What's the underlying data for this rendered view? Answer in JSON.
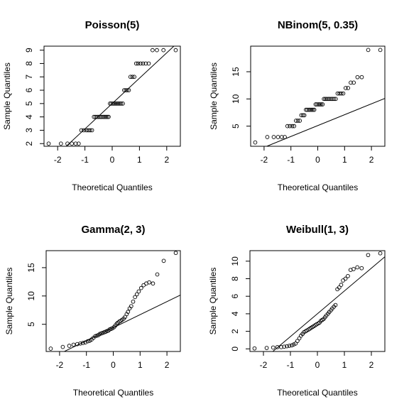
{
  "chart_data": [
    {
      "type": "scatter",
      "title": "Poisson(5)",
      "xlabel": "Theoretical Quantiles",
      "ylabel": "Sample Quantiles",
      "xlim": [
        -2.5,
        2.5
      ],
      "ylim": [
        1.8,
        9.3
      ],
      "xticks": [
        -2,
        -1,
        0,
        1,
        2
      ],
      "yticks": [
        2,
        3,
        4,
        5,
        6,
        7,
        8,
        9
      ],
      "ytick_labels": [
        "2",
        "3",
        "4",
        "5",
        "6",
        "7",
        "8",
        "9"
      ],
      "points": {
        "x": [
          -2.33,
          -1.88,
          -1.64,
          -1.48,
          -1.34,
          -1.23,
          -1.13,
          -1.04,
          -0.95,
          -0.88,
          -0.81,
          -0.74,
          -0.67,
          -0.61,
          -0.55,
          -0.5,
          -0.44,
          -0.39,
          -0.33,
          -0.28,
          -0.23,
          -0.18,
          -0.13,
          -0.08,
          -0.03,
          0.03,
          0.08,
          0.13,
          0.18,
          0.23,
          0.28,
          0.33,
          0.39,
          0.44,
          0.5,
          0.55,
          0.61,
          0.67,
          0.74,
          0.81,
          0.88,
          0.95,
          1.04,
          1.13,
          1.23,
          1.34,
          1.48,
          1.64,
          1.88,
          2.33
        ],
        "y": [
          2,
          2,
          2,
          2,
          2,
          2,
          3,
          3,
          3,
          3,
          3,
          3,
          4,
          4,
          4,
          4,
          4,
          4,
          4,
          4,
          4,
          4,
          4,
          5,
          5,
          5,
          5,
          5,
          5,
          5,
          5,
          5,
          5,
          6,
          6,
          6,
          6,
          7,
          7,
          7,
          8,
          8,
          8,
          8,
          8,
          8,
          9,
          9,
          9,
          9
        ]
      },
      "ref_line": {
        "intercept": 5.0,
        "slope": 1.9
      }
    },
    {
      "type": "scatter",
      "title": "NBinom(5, 0.35)",
      "xlabel": "Theoretical Quantiles",
      "ylabel": "Sample Quantiles",
      "xlim": [
        -2.5,
        2.5
      ],
      "ylim": [
        1.3,
        19.7
      ],
      "xticks": [
        -2,
        -1,
        0,
        1,
        2
      ],
      "yticks": [
        5,
        10,
        15
      ],
      "ytick_labels": [
        "5",
        "10",
        "15"
      ],
      "points": {
        "x": [
          -2.33,
          -1.88,
          -1.64,
          -1.48,
          -1.34,
          -1.23,
          -1.13,
          -1.04,
          -0.95,
          -0.88,
          -0.81,
          -0.74,
          -0.67,
          -0.61,
          -0.55,
          -0.5,
          -0.44,
          -0.39,
          -0.33,
          -0.28,
          -0.23,
          -0.18,
          -0.13,
          -0.08,
          -0.03,
          0.03,
          0.08,
          0.13,
          0.18,
          0.23,
          0.28,
          0.33,
          0.39,
          0.44,
          0.5,
          0.55,
          0.61,
          0.67,
          0.74,
          0.81,
          0.88,
          0.95,
          1.04,
          1.13,
          1.23,
          1.34,
          1.48,
          1.64,
          1.88,
          2.33
        ],
        "y": [
          2,
          3,
          3,
          3,
          3,
          3,
          5,
          5,
          5,
          5,
          6,
          6,
          6,
          7,
          7,
          7,
          8,
          8,
          8,
          8,
          8,
          8,
          8,
          9,
          9,
          9,
          9,
          9,
          9,
          10,
          10,
          10,
          10,
          10,
          10,
          10,
          10,
          10,
          11,
          11,
          11,
          11,
          12,
          12,
          13,
          13,
          14,
          14,
          19,
          19
        ]
      },
      "ref_line": {
        "intercept": 5.1,
        "slope": 2.0
      }
    },
    {
      "type": "scatter",
      "title": "Gamma(2, 3)",
      "xlabel": "Theoretical Quantiles",
      "ylabel": "Sample Quantiles",
      "xlim": [
        -2.5,
        2.5
      ],
      "ylim": [
        0.2,
        18.0
      ],
      "xticks": [
        -2,
        -1,
        0,
        1,
        2
      ],
      "yticks": [
        5,
        10,
        15
      ],
      "ytick_labels": [
        "5",
        "10",
        "15"
      ],
      "points": {
        "x": [
          -2.33,
          -1.88,
          -1.64,
          -1.48,
          -1.34,
          -1.23,
          -1.13,
          -1.04,
          -0.95,
          -0.88,
          -0.81,
          -0.74,
          -0.67,
          -0.61,
          -0.55,
          -0.5,
          -0.44,
          -0.39,
          -0.33,
          -0.28,
          -0.23,
          -0.18,
          -0.13,
          -0.08,
          -0.03,
          0.03,
          0.08,
          0.13,
          0.18,
          0.23,
          0.28,
          0.33,
          0.39,
          0.44,
          0.5,
          0.55,
          0.61,
          0.67,
          0.74,
          0.81,
          0.88,
          0.95,
          1.04,
          1.13,
          1.23,
          1.34,
          1.48,
          1.64,
          1.88,
          2.33
        ],
        "y": [
          0.7,
          1.0,
          1.2,
          1.4,
          1.5,
          1.6,
          1.7,
          1.8,
          2.0,
          2.1,
          2.3,
          2.6,
          2.9,
          3.0,
          3.1,
          3.3,
          3.4,
          3.5,
          3.6,
          3.7,
          3.8,
          3.9,
          4.1,
          4.2,
          4.3,
          4.5,
          4.8,
          5.1,
          5.3,
          5.5,
          5.6,
          5.8,
          6.0,
          6.3,
          6.8,
          7.2,
          7.8,
          8.2,
          9.0,
          9.8,
          10.3,
          10.8,
          11.4,
          11.9,
          12.2,
          12.4,
          12.2,
          13.8,
          16.2,
          17.6
        ]
      },
      "ref_line": {
        "intercept": 4.4,
        "slope": 2.3
      }
    },
    {
      "type": "scatter",
      "title": "Weibull(1, 3)",
      "xlabel": "Theoretical Quantiles",
      "ylabel": "Sample Quantiles",
      "xlim": [
        -2.5,
        2.5
      ],
      "ylim": [
        -0.3,
        11.2
      ],
      "xticks": [
        -2,
        -1,
        0,
        1,
        2
      ],
      "yticks": [
        0,
        2,
        4,
        6,
        8,
        10
      ],
      "ytick_labels": [
        "0",
        "2",
        "4",
        "6",
        "8",
        "10"
      ],
      "points": {
        "x": [
          -2.33,
          -1.88,
          -1.64,
          -1.48,
          -1.34,
          -1.23,
          -1.13,
          -1.04,
          -0.95,
          -0.88,
          -0.81,
          -0.74,
          -0.67,
          -0.61,
          -0.55,
          -0.5,
          -0.44,
          -0.39,
          -0.33,
          -0.28,
          -0.23,
          -0.18,
          -0.13,
          -0.08,
          -0.03,
          0.03,
          0.08,
          0.13,
          0.18,
          0.23,
          0.28,
          0.33,
          0.39,
          0.44,
          0.5,
          0.55,
          0.61,
          0.67,
          0.74,
          0.81,
          0.88,
          0.95,
          1.04,
          1.13,
          1.23,
          1.34,
          1.48,
          1.64,
          1.88,
          2.33
        ],
        "y": [
          0.05,
          0.1,
          0.15,
          0.2,
          0.2,
          0.25,
          0.3,
          0.35,
          0.4,
          0.5,
          0.6,
          0.9,
          1.2,
          1.5,
          1.7,
          1.9,
          2.0,
          2.1,
          2.2,
          2.3,
          2.4,
          2.5,
          2.6,
          2.7,
          2.8,
          2.9,
          3.0,
          3.2,
          3.3,
          3.4,
          3.6,
          3.8,
          4.0,
          4.2,
          4.4,
          4.6,
          4.8,
          5.0,
          6.8,
          7.0,
          7.3,
          7.8,
          8.0,
          8.3,
          9.0,
          9.1,
          9.3,
          9.2,
          10.7,
          10.9
        ]
      },
      "ref_line": {
        "intercept": 4.0,
        "slope": 2.6
      }
    }
  ]
}
